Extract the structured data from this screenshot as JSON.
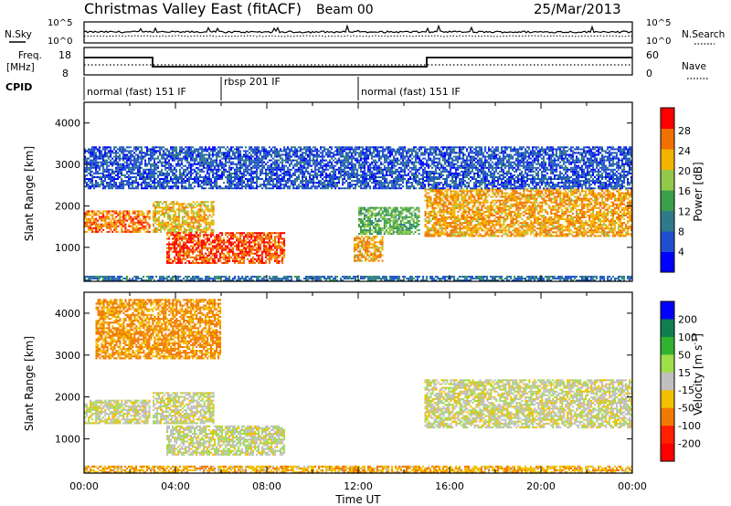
{
  "header": {
    "station": "Christmas Valley East (fitACF)",
    "beam": "Beam 00",
    "date": "25/Mar/2013"
  },
  "top_panels": {
    "nsky_label": "N.Sky",
    "nsearch_label": "N.Search",
    "nsky_ticks": [
      "10^5",
      "10^0"
    ],
    "nsearch_ticks": [
      "10^5",
      "10^0"
    ],
    "freq_label_1": "Freq.",
    "freq_label_2": "[MHz]",
    "freq_ticks": [
      "18",
      "8"
    ],
    "nave_label": "Nave",
    "nave_ticks": [
      "60",
      "0"
    ],
    "cpid_label": "CPID",
    "cpid_segments": [
      {
        "label": "normal (fast) 151 IF",
        "start": 0,
        "end": 6
      },
      {
        "label": "rbsp 201 IF",
        "start": 6,
        "end": 12
      },
      {
        "label": "normal (fast) 151 IF",
        "start": 12,
        "end": 24
      }
    ]
  },
  "colorbars": {
    "power": {
      "label": "Power [dB]",
      "ticks": [
        "28",
        "24",
        "20",
        "16",
        "12",
        "8",
        "4"
      ],
      "colors": [
        "#0000ff",
        "#1f4fcf",
        "#2f7a8a",
        "#3aa04a",
        "#93c94a",
        "#f2b400",
        "#f07000",
        "#ff0000"
      ]
    },
    "velocity": {
      "label": "Velocity [m s",
      "label_exp": "-1",
      "label_end": "]",
      "ticks": [
        "200",
        "100",
        "50",
        "15",
        "-15",
        "-50",
        "-100",
        "-200"
      ],
      "colors": [
        "#0000ff",
        "#0f7f4f",
        "#2fb22f",
        "#9ede4a",
        "#c0c0c0",
        "#f2c000",
        "#f07a00",
        "#ff2000",
        "#ff0000"
      ]
    }
  },
  "chart_data": [
    {
      "type": "heatmap",
      "title": "Power",
      "xlabel": "",
      "ylabel": "Slant Range [km]",
      "xlim": [
        0,
        24
      ],
      "ylim": [
        180,
        4500
      ],
      "x_ticks": [
        "00:00",
        "04:00",
        "08:00",
        "12:00",
        "16:00",
        "20:00",
        "00:00"
      ],
      "y_ticks": [
        1000,
        2000,
        3000,
        4000
      ],
      "colorbar_range": [
        0,
        30
      ],
      "regions": [
        {
          "t0": 0.0,
          "t1": 2.9,
          "r0": 1350,
          "r1": 1850,
          "power": 24
        },
        {
          "t0": 3.0,
          "t1": 5.7,
          "r0": 1350,
          "r1": 2100,
          "power": 20
        },
        {
          "t0": 3.6,
          "t1": 8.8,
          "r0": 600,
          "r1": 1350,
          "power": 26
        },
        {
          "t0": 11.8,
          "t1": 13.1,
          "r0": 650,
          "r1": 1250,
          "power": 22
        },
        {
          "t0": 12.0,
          "t1": 14.7,
          "r0": 1300,
          "r1": 1950,
          "power": 14
        },
        {
          "t0": 14.9,
          "t1": 24.0,
          "r0": 1250,
          "r1": 2400,
          "power": 22
        },
        {
          "t0": 0.0,
          "t1": 24.0,
          "r0": 2400,
          "r1": 3400,
          "power": 6
        },
        {
          "t0": 0.0,
          "t1": 24.0,
          "r0": 180,
          "r1": 300,
          "power": 8
        }
      ]
    },
    {
      "type": "heatmap",
      "title": "Velocity",
      "xlabel": "Time UT",
      "ylabel": "Slant Range [km]",
      "xlim": [
        0,
        24
      ],
      "ylim": [
        180,
        4500
      ],
      "x_ticks": [
        "00:00",
        "04:00",
        "08:00",
        "12:00",
        "16:00",
        "20:00",
        "00:00"
      ],
      "y_ticks": [
        1000,
        2000,
        3000,
        4000
      ],
      "colorbar_range": [
        -200,
        200
      ],
      "regions": [
        {
          "t0": 0.0,
          "t1": 2.9,
          "r0": 1350,
          "r1": 1900,
          "velocity": 0
        },
        {
          "t0": 3.0,
          "t1": 5.7,
          "r0": 1350,
          "r1": 2100,
          "velocity": 0
        },
        {
          "t0": 3.6,
          "t1": 8.8,
          "r0": 600,
          "r1": 1300,
          "velocity": 5
        },
        {
          "t0": 14.9,
          "t1": 24.0,
          "r0": 1250,
          "r1": 2400,
          "velocity": 0
        },
        {
          "t0": 0.5,
          "t1": 6.0,
          "r0": 2900,
          "r1": 4300,
          "velocity": -60
        },
        {
          "t0": 0.0,
          "t1": 24.0,
          "r0": 180,
          "r1": 320,
          "velocity": -40
        }
      ]
    }
  ]
}
